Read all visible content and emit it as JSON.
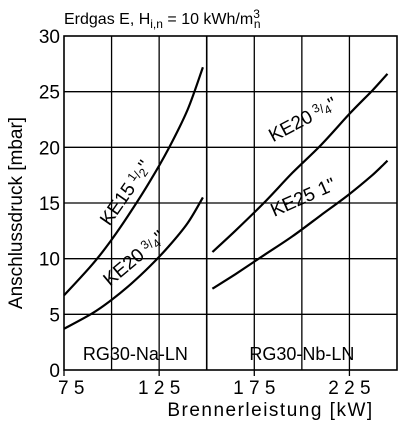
{
  "header": {
    "gas": "Erdgas E, H",
    "sub": "i,n",
    "eq": " = 10 kWh/m",
    "sup": "3",
    "sub2": "n"
  },
  "chart_data": {
    "type": "line",
    "xlabel": "Brennerleistung  [kW]",
    "ylabel": "Anschlussdruck [mbar]",
    "xlim": [
      75,
      250
    ],
    "ylim": [
      0,
      30
    ],
    "x_ticks": [
      75,
      125,
      175,
      225
    ],
    "x_tick_labels": [
      "7 5",
      "1 2 5",
      "1 7 5",
      "2 2 5"
    ],
    "y_ticks": [
      0,
      5,
      10,
      15,
      20,
      25,
      30
    ],
    "y_tick_labels": [
      "0",
      "5",
      "10",
      "15",
      "20",
      "25",
      "30"
    ],
    "grid": true,
    "divider_x": 150,
    "regions": [
      {
        "label": "RG30-Na-LN"
      },
      {
        "label": "RG30-Nb-LN"
      }
    ],
    "series": [
      {
        "name": "KE15 ½\"",
        "label_main": "KE15",
        "label_frac_num": "1",
        "label_frac_den": "2",
        "label_tail": "\"",
        "x": [
          75,
          90,
          100,
          110,
          120,
          130,
          140,
          148
        ],
        "y": [
          6.7,
          9.5,
          11.7,
          14.2,
          16.9,
          19.9,
          23.4,
          27.2
        ]
      },
      {
        "name": "KE20 ¾\"",
        "label_main": "KE20",
        "label_frac_num": "3",
        "label_frac_den": "4",
        "label_tail": "\"",
        "x": [
          75,
          90,
          100,
          110,
          120,
          130,
          140,
          148
        ],
        "y": [
          3.7,
          5.1,
          6.3,
          7.7,
          9.3,
          11.1,
          13.2,
          15.5
        ]
      },
      {
        "name": "KE20 ¾\"",
        "label_main": "KE20",
        "label_frac_num": "3",
        "label_frac_den": "4",
        "label_tail": "\"",
        "x": [
          153,
          165,
          180,
          195,
          210,
          225,
          237,
          245
        ],
        "y": [
          10.6,
          12.5,
          15.0,
          17.7,
          20.2,
          23.0,
          25.1,
          26.6
        ]
      },
      {
        "name": "KE25 1\"",
        "label_main": "KE25 1\"",
        "label_frac_num": "",
        "label_frac_den": "",
        "label_tail": "",
        "x": [
          153,
          165,
          180,
          195,
          210,
          225,
          237,
          245
        ],
        "y": [
          7.3,
          8.6,
          10.3,
          12.0,
          13.9,
          15.8,
          17.5,
          18.8
        ]
      }
    ]
  }
}
